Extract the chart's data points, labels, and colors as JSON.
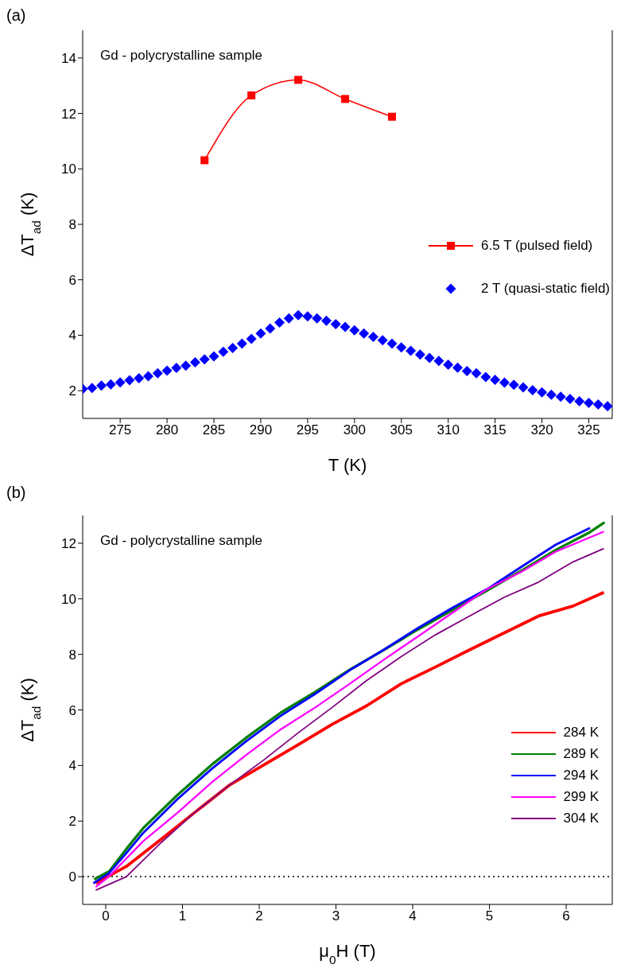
{
  "chart_data": [
    {
      "type": "line",
      "title": "(a)",
      "xlabel": "T (K)",
      "ylabel": "ΔT$_{ad}$ (K)",
      "annotations": [
        "Gd - polycrystalline sample"
      ],
      "xlim": [
        271,
        327.5
      ],
      "xticks": [
        275,
        280,
        285,
        290,
        295,
        300,
        305,
        310,
        315,
        320,
        325
      ],
      "ylim": [
        1,
        15
      ],
      "yticks": [
        2,
        4,
        6,
        8,
        10,
        12,
        14
      ],
      "legend": "right",
      "series": [
        {
          "name": "6.5 T (pulsed field)",
          "marker": "square",
          "color": "#ff0000",
          "x": [
            284,
            289,
            294,
            299,
            304
          ],
          "values": [
            10.31,
            12.65,
            13.21,
            12.52,
            11.88
          ]
        },
        {
          "name": "2 T (quasi-static field)",
          "type": "scatter",
          "marker": "diamond",
          "color": "#0000ff",
          "x": [
            271,
            272,
            273,
            274,
            275,
            276,
            277,
            278,
            279,
            280,
            281,
            282,
            283,
            284,
            285,
            286,
            287,
            288,
            289,
            290,
            291,
            292,
            293,
            294,
            295,
            296,
            297,
            298,
            299,
            300,
            301,
            302,
            303,
            304,
            305,
            306,
            307,
            308,
            309,
            310,
            311,
            312,
            313,
            314,
            315,
            316,
            317,
            318,
            319,
            320,
            321,
            322,
            323,
            324,
            325,
            326,
            327
          ],
          "values": [
            2.06,
            2.1,
            2.18,
            2.23,
            2.3,
            2.38,
            2.45,
            2.52,
            2.63,
            2.72,
            2.82,
            2.9,
            3.02,
            3.13,
            3.24,
            3.4,
            3.54,
            3.7,
            3.87,
            4.06,
            4.24,
            4.46,
            4.61,
            4.72,
            4.68,
            4.61,
            4.52,
            4.4,
            4.3,
            4.18,
            4.06,
            3.94,
            3.82,
            3.7,
            3.56,
            3.44,
            3.3,
            3.18,
            3.07,
            2.94,
            2.83,
            2.71,
            2.63,
            2.49,
            2.39,
            2.29,
            2.21,
            2.12,
            2.02,
            1.94,
            1.85,
            1.78,
            1.7,
            1.62,
            1.56,
            1.5,
            1.44
          ]
        }
      ]
    },
    {
      "type": "line",
      "title": "(b)",
      "xlabel": "μ$_{0}$H (T)",
      "ylabel": "ΔT$_{ad}$ (K)",
      "annotations": [
        "Gd - polycrystalline sample"
      ],
      "xlim": [
        -0.3,
        6.6
      ],
      "xticks": [
        0,
        1,
        2,
        3,
        4,
        5,
        6
      ],
      "ylim": [
        -1,
        13
      ],
      "yticks": [
        0,
        2,
        4,
        6,
        8,
        10,
        12
      ],
      "legend": "bottom right",
      "marker": "none",
      "line_style": "solid",
      "ref_lines": [
        {
          "axis": "y",
          "value": 0,
          "color": "#000000",
          "line_style": "dotted"
        }
      ],
      "series": [
        {
          "name": "284 K",
          "color": "#ff0000",
          "x": [
            -0.13,
            0.27,
            0.72,
            1.16,
            1.61,
            2.06,
            2.51,
            2.95,
            3.4,
            3.85,
            4.3,
            4.74,
            5.19,
            5.64,
            6.09,
            6.49
          ],
          "values": [
            -0.24,
            0.37,
            1.34,
            2.31,
            3.29,
            4.02,
            4.75,
            5.48,
            6.15,
            6.94,
            7.55,
            8.16,
            8.77,
            9.38,
            9.74,
            10.23
          ]
        },
        {
          "name": "289 K",
          "color": "#008000",
          "x": [
            -0.15,
            0.05,
            0.27,
            0.49,
            0.94,
            1.39,
            1.83,
            2.28,
            2.73,
            3.18,
            3.62,
            4.07,
            4.52,
            4.97,
            5.41,
            5.86,
            6.31,
            6.5
          ],
          "values": [
            -0.1,
            0.2,
            1.0,
            1.75,
            2.95,
            4.05,
            5.0,
            5.9,
            6.65,
            7.45,
            8.15,
            8.9,
            9.6,
            10.3,
            11.0,
            11.75,
            12.4,
            12.75
          ]
        },
        {
          "name": "294 K",
          "color": "#0000ff",
          "x": [
            -0.16,
            0.04,
            0.27,
            0.49,
            0.94,
            1.39,
            1.83,
            2.28,
            2.73,
            3.18,
            3.62,
            4.07,
            4.52,
            4.97,
            5.41,
            5.86,
            6.31
          ],
          "values": [
            -0.24,
            0.12,
            0.85,
            1.58,
            2.8,
            3.9,
            4.87,
            5.79,
            6.58,
            7.43,
            8.16,
            8.95,
            9.68,
            10.35,
            11.14,
            11.94,
            12.55
          ]
        },
        {
          "name": "299 K",
          "color": "#ff00ff",
          "x": [
            -0.13,
            0.04,
            0.49,
            0.94,
            1.39,
            1.83,
            2.28,
            2.73,
            3.18,
            3.62,
            4.07,
            4.52,
            4.97,
            5.41,
            5.86,
            6.49
          ],
          "values": [
            -0.37,
            0.0,
            1.28,
            2.31,
            3.41,
            4.38,
            5.3,
            6.09,
            6.94,
            7.8,
            8.65,
            9.5,
            10.35,
            10.96,
            11.69,
            12.42
          ]
        },
        {
          "name": "304 K",
          "color": "#800080",
          "x": [
            -0.13,
            0.27,
            0.72,
            1.16,
            1.61,
            2.06,
            2.51,
            2.95,
            3.4,
            3.85,
            4.3,
            4.74,
            5.19,
            5.64,
            6.09,
            6.49
          ],
          "values": [
            -0.49,
            0.0,
            1.22,
            2.31,
            3.29,
            4.2,
            5.18,
            6.09,
            7.06,
            7.92,
            8.71,
            9.38,
            10.05,
            10.6,
            11.33,
            11.81
          ]
        }
      ]
    }
  ]
}
